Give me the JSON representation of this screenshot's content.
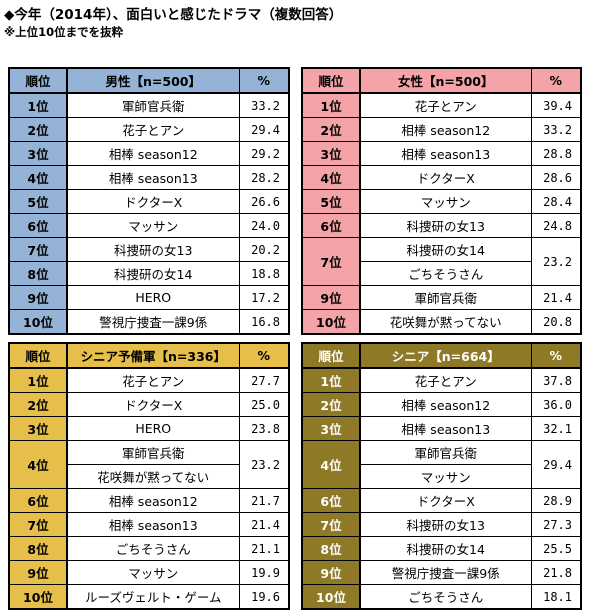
{
  "title": "◆今年（2014年）、面白いと感じたドラマ（複数回答）",
  "note": "※上位10位までを抜粋",
  "chart_data": [
    {
      "type": "table",
      "id": "t1",
      "colors": {
        "header": "#95b3d7",
        "rank": "#95b3d7"
      },
      "header": {
        "rank": "順位",
        "name": "男性【n=500】",
        "pct": "%"
      },
      "rows": [
        {
          "rank": "1位",
          "items": [
            {
              "name": "軍師官兵衛"
            }
          ],
          "pct": "33.2"
        },
        {
          "rank": "2位",
          "items": [
            {
              "name": "花子とアン"
            }
          ],
          "pct": "29.4"
        },
        {
          "rank": "3位",
          "items": [
            {
              "name": "相棒 season12"
            }
          ],
          "pct": "29.2"
        },
        {
          "rank": "4位",
          "items": [
            {
              "name": "相棒 season13"
            }
          ],
          "pct": "28.2"
        },
        {
          "rank": "5位",
          "items": [
            {
              "name": "ドクターX"
            }
          ],
          "pct": "26.6"
        },
        {
          "rank": "6位",
          "items": [
            {
              "name": "マッサン"
            }
          ],
          "pct": "24.0"
        },
        {
          "rank": "7位",
          "items": [
            {
              "name": "科捜研の女13"
            }
          ],
          "pct": "20.2"
        },
        {
          "rank": "8位",
          "items": [
            {
              "name": "科捜研の女14"
            }
          ],
          "pct": "18.8"
        },
        {
          "rank": "9位",
          "items": [
            {
              "name": "HERO"
            }
          ],
          "pct": "17.2"
        },
        {
          "rank": "10位",
          "items": [
            {
              "name": "警視庁捜査一課9係"
            }
          ],
          "pct": "16.8"
        }
      ]
    },
    {
      "type": "table",
      "id": "t2",
      "colors": {
        "header": "#f4a3a8",
        "rank": "#f4a3a8"
      },
      "header": {
        "rank": "順位",
        "name": "女性【n=500】",
        "pct": "%"
      },
      "rows": [
        {
          "rank": "1位",
          "items": [
            {
              "name": "花子とアン"
            }
          ],
          "pct": "39.4"
        },
        {
          "rank": "2位",
          "items": [
            {
              "name": "相棒 season12"
            }
          ],
          "pct": "33.2"
        },
        {
          "rank": "3位",
          "items": [
            {
              "name": "相棒 season13"
            }
          ],
          "pct": "28.8"
        },
        {
          "rank": "4位",
          "items": [
            {
              "name": "ドクターX"
            }
          ],
          "pct": "28.6"
        },
        {
          "rank": "5位",
          "items": [
            {
              "name": "マッサン"
            }
          ],
          "pct": "28.4"
        },
        {
          "rank": "6位",
          "items": [
            {
              "name": "科捜研の女13"
            }
          ],
          "pct": "24.8"
        },
        {
          "rank": "7位",
          "items": [
            {
              "name": "科捜研の女14"
            },
            {
              "name": "ごちそうさん"
            }
          ],
          "pct": "23.2"
        },
        {
          "rank": "9位",
          "items": [
            {
              "name": "軍師官兵衛"
            }
          ],
          "pct": "21.4"
        },
        {
          "rank": "10位",
          "items": [
            {
              "name": "花咲舞が黙ってない"
            }
          ],
          "pct": "20.8"
        }
      ]
    },
    {
      "type": "table",
      "id": "t3",
      "colors": {
        "header": "#e6bf4a",
        "rank": "#e6bf4a"
      },
      "header": {
        "rank": "順位",
        "name": "シニア予備軍【n=336】",
        "pct": "%"
      },
      "rows": [
        {
          "rank": "1位",
          "items": [
            {
              "name": "花子とアン"
            }
          ],
          "pct": "27.7"
        },
        {
          "rank": "2位",
          "items": [
            {
              "name": "ドクターX"
            }
          ],
          "pct": "25.0"
        },
        {
          "rank": "3位",
          "items": [
            {
              "name": "HERO"
            }
          ],
          "pct": "23.8"
        },
        {
          "rank": "4位",
          "items": [
            {
              "name": "軍師官兵衛"
            },
            {
              "name": "花咲舞が黙ってない"
            }
          ],
          "pct": "23.2"
        },
        {
          "rank": "6位",
          "items": [
            {
              "name": "相棒 season12"
            }
          ],
          "pct": "21.7"
        },
        {
          "rank": "7位",
          "items": [
            {
              "name": "相棒 season13"
            }
          ],
          "pct": "21.4"
        },
        {
          "rank": "8位",
          "items": [
            {
              "name": "ごちそうさん"
            }
          ],
          "pct": "21.1"
        },
        {
          "rank": "9位",
          "items": [
            {
              "name": "マッサン"
            }
          ],
          "pct": "19.9"
        },
        {
          "rank": "10位",
          "items": [
            {
              "name": "ルーズヴェルト・ゲーム"
            }
          ],
          "pct": "19.6"
        }
      ]
    },
    {
      "type": "table",
      "id": "t4",
      "colors": {
        "header": "#8e7a26",
        "rank": "#8e7a26",
        "text": "#ffffff"
      },
      "header": {
        "rank": "順位",
        "name": "シニア【n=664】",
        "pct": "%"
      },
      "rows": [
        {
          "rank": "1位",
          "items": [
            {
              "name": "花子とアン"
            }
          ],
          "pct": "37.8"
        },
        {
          "rank": "2位",
          "items": [
            {
              "name": "相棒 season12"
            }
          ],
          "pct": "36.0"
        },
        {
          "rank": "3位",
          "items": [
            {
              "name": "相棒 season13"
            }
          ],
          "pct": "32.1"
        },
        {
          "rank": "4位",
          "items": [
            {
              "name": "軍師官兵衛"
            },
            {
              "name": "マッサン"
            }
          ],
          "pct": "29.4"
        },
        {
          "rank": "6位",
          "items": [
            {
              "name": "ドクターX"
            }
          ],
          "pct": "28.9"
        },
        {
          "rank": "7位",
          "items": [
            {
              "name": "科捜研の女13"
            }
          ],
          "pct": "27.3"
        },
        {
          "rank": "8位",
          "items": [
            {
              "name": "科捜研の女14"
            }
          ],
          "pct": "25.5"
        },
        {
          "rank": "9位",
          "items": [
            {
              "name": "警視庁捜査一課9係"
            }
          ],
          "pct": "21.8"
        },
        {
          "rank": "10位",
          "items": [
            {
              "name": "ごちそうさん"
            }
          ],
          "pct": "18.1"
        }
      ]
    }
  ]
}
